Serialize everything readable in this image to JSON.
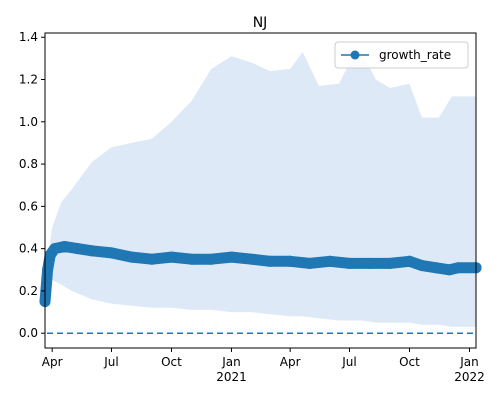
{
  "chart_data": {
    "type": "line",
    "title": "NJ",
    "xlabel": "",
    "ylabel": "",
    "x_range": [
      "2020-03-21",
      "2022-01-11"
    ],
    "ylim": [
      -0.07,
      1.42
    ],
    "yticks": [
      0.0,
      0.2,
      0.4,
      0.6,
      0.8,
      1.0,
      1.2,
      1.4
    ],
    "ytick_labels": [
      "0.0",
      "0.2",
      "0.4",
      "0.6",
      "0.8",
      "1.0",
      "1.2",
      "1.4"
    ],
    "xticks": [
      {
        "date": "2020-04-01",
        "label": "Apr",
        "year": ""
      },
      {
        "date": "2020-07-01",
        "label": "Jul",
        "year": ""
      },
      {
        "date": "2020-10-01",
        "label": "Oct",
        "year": ""
      },
      {
        "date": "2021-01-01",
        "label": "Jan",
        "year": "2021"
      },
      {
        "date": "2021-04-01",
        "label": "Apr",
        "year": ""
      },
      {
        "date": "2021-07-01",
        "label": "Jul",
        "year": ""
      },
      {
        "date": "2021-10-01",
        "label": "Oct",
        "year": ""
      },
      {
        "date": "2022-01-01",
        "label": "Jan",
        "year": "2022"
      }
    ],
    "legend": {
      "position": "top-right",
      "entries": [
        "growth_rate"
      ]
    },
    "grid": false,
    "colors": {
      "line": "#1f77b4",
      "band": "#dde9f6",
      "reference": "#1f77b4"
    },
    "reference_line": {
      "y": 0.0,
      "style": "dashed"
    },
    "series": [
      {
        "name": "growth_rate",
        "marker": "o",
        "points": [
          {
            "date": "2020-03-21",
            "value": 0.15
          },
          {
            "date": "2020-03-25",
            "value": 0.3
          },
          {
            "date": "2020-03-29",
            "value": 0.37
          },
          {
            "date": "2020-04-05",
            "value": 0.4
          },
          {
            "date": "2020-04-20",
            "value": 0.41
          },
          {
            "date": "2020-05-10",
            "value": 0.4
          },
          {
            "date": "2020-06-01",
            "value": 0.39
          },
          {
            "date": "2020-07-01",
            "value": 0.38
          },
          {
            "date": "2020-08-01",
            "value": 0.36
          },
          {
            "date": "2020-09-01",
            "value": 0.35
          },
          {
            "date": "2020-10-01",
            "value": 0.36
          },
          {
            "date": "2020-11-01",
            "value": 0.35
          },
          {
            "date": "2020-12-01",
            "value": 0.35
          },
          {
            "date": "2021-01-01",
            "value": 0.36
          },
          {
            "date": "2021-02-01",
            "value": 0.35
          },
          {
            "date": "2021-03-01",
            "value": 0.34
          },
          {
            "date": "2021-04-01",
            "value": 0.34
          },
          {
            "date": "2021-05-01",
            "value": 0.33
          },
          {
            "date": "2021-06-01",
            "value": 0.34
          },
          {
            "date": "2021-07-01",
            "value": 0.33
          },
          {
            "date": "2021-08-01",
            "value": 0.33
          },
          {
            "date": "2021-09-01",
            "value": 0.33
          },
          {
            "date": "2021-10-01",
            "value": 0.34
          },
          {
            "date": "2021-10-20",
            "value": 0.32
          },
          {
            "date": "2021-11-10",
            "value": 0.31
          },
          {
            "date": "2021-12-01",
            "value": 0.3
          },
          {
            "date": "2021-12-15",
            "value": 0.31
          },
          {
            "date": "2022-01-11",
            "value": 0.31
          }
        ]
      }
    ],
    "band": [
      {
        "date": "2020-03-21",
        "lower": 0.13,
        "upper": 0.15
      },
      {
        "date": "2020-03-25",
        "lower": 0.2,
        "upper": 0.35
      },
      {
        "date": "2020-04-01",
        "lower": 0.25,
        "upper": 0.5
      },
      {
        "date": "2020-04-15",
        "lower": 0.23,
        "upper": 0.62
      },
      {
        "date": "2020-05-01",
        "lower": 0.2,
        "upper": 0.68
      },
      {
        "date": "2020-06-01",
        "lower": 0.16,
        "upper": 0.81
      },
      {
        "date": "2020-07-01",
        "lower": 0.14,
        "upper": 0.88
      },
      {
        "date": "2020-08-01",
        "lower": 0.13,
        "upper": 0.9
      },
      {
        "date": "2020-09-01",
        "lower": 0.12,
        "upper": 0.92
      },
      {
        "date": "2020-10-01",
        "lower": 0.12,
        "upper": 1.0
      },
      {
        "date": "2020-11-01",
        "lower": 0.11,
        "upper": 1.1
      },
      {
        "date": "2020-12-01",
        "lower": 0.11,
        "upper": 1.25
      },
      {
        "date": "2021-01-01",
        "lower": 0.1,
        "upper": 1.31
      },
      {
        "date": "2021-02-01",
        "lower": 0.1,
        "upper": 1.28
      },
      {
        "date": "2021-03-01",
        "lower": 0.09,
        "upper": 1.24
      },
      {
        "date": "2021-04-01",
        "lower": 0.08,
        "upper": 1.25
      },
      {
        "date": "2021-04-20",
        "lower": 0.08,
        "upper": 1.33
      },
      {
        "date": "2021-05-15",
        "lower": 0.07,
        "upper": 1.17
      },
      {
        "date": "2021-06-15",
        "lower": 0.06,
        "upper": 1.18
      },
      {
        "date": "2021-07-01",
        "lower": 0.06,
        "upper": 1.28
      },
      {
        "date": "2021-07-20",
        "lower": 0.06,
        "upper": 1.33
      },
      {
        "date": "2021-08-10",
        "lower": 0.05,
        "upper": 1.2
      },
      {
        "date": "2021-09-01",
        "lower": 0.05,
        "upper": 1.16
      },
      {
        "date": "2021-10-01",
        "lower": 0.05,
        "upper": 1.18
      },
      {
        "date": "2021-10-20",
        "lower": 0.04,
        "upper": 1.02
      },
      {
        "date": "2021-11-15",
        "lower": 0.04,
        "upper": 1.02
      },
      {
        "date": "2021-12-05",
        "lower": 0.03,
        "upper": 1.12
      },
      {
        "date": "2022-01-11",
        "lower": 0.03,
        "upper": 1.12
      }
    ]
  }
}
